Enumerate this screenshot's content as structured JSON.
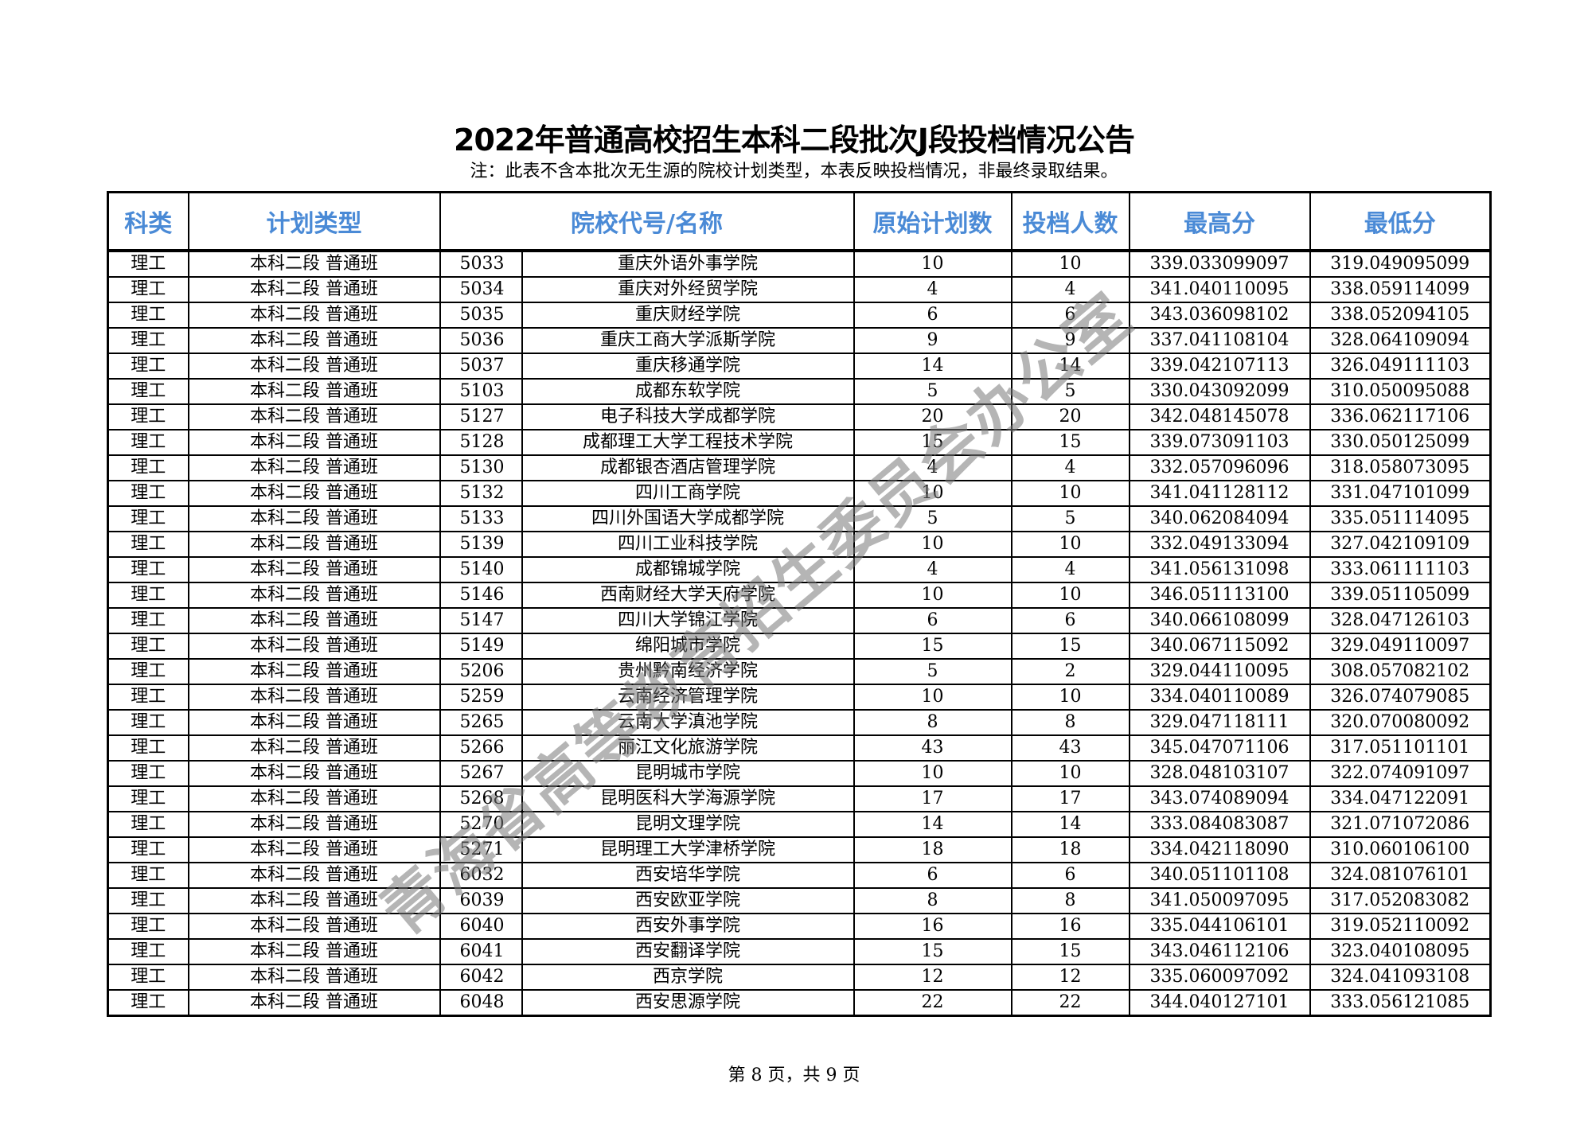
{
  "title": "2022年普通高校招生本科二段批次J段投档情况公告",
  "note": "注：此表不含本批次无生源的院校计划类型，本表反映投档情况，非最终录取结果。",
  "header_color": "#4a8ad6",
  "columns": [
    "科类",
    "计划类型",
    "院校代号/名称",
    "原始计划数",
    "投档人数",
    "最高分",
    "最低分"
  ],
  "rows": [
    [
      "理工",
      "本科二段 普通班",
      "5033",
      "重庆外语外事学院",
      "10",
      "10",
      "339.033099097",
      "319.049095099"
    ],
    [
      "理工",
      "本科二段 普通班",
      "5034",
      "重庆对外经贸学院",
      "4",
      "4",
      "341.040110095",
      "338.059114099"
    ],
    [
      "理工",
      "本科二段 普通班",
      "5035",
      "重庆财经学院",
      "6",
      "6",
      "343.036098102",
      "338.052094105"
    ],
    [
      "理工",
      "本科二段 普通班",
      "5036",
      "重庆工商大学派斯学院",
      "9",
      "9",
      "337.041108104",
      "328.064109094"
    ],
    [
      "理工",
      "本科二段 普通班",
      "5037",
      "重庆移通学院",
      "14",
      "14",
      "339.042107113",
      "326.049111103"
    ],
    [
      "理工",
      "本科二段 普通班",
      "5103",
      "成都东软学院",
      "5",
      "5",
      "330.043092099",
      "310.050095088"
    ],
    [
      "理工",
      "本科二段 普通班",
      "5127",
      "电子科技大学成都学院",
      "20",
      "20",
      "342.048145078",
      "336.062117106"
    ],
    [
      "理工",
      "本科二段 普通班",
      "5128",
      "成都理工大学工程技术学院",
      "15",
      "15",
      "339.073091103",
      "330.050125099"
    ],
    [
      "理工",
      "本科二段 普通班",
      "5130",
      "成都银杏酒店管理学院",
      "4",
      "4",
      "332.057096096",
      "318.058073095"
    ],
    [
      "理工",
      "本科二段 普通班",
      "5132",
      "四川工商学院",
      "10",
      "10",
      "341.041128112",
      "331.047101099"
    ],
    [
      "理工",
      "本科二段 普通班",
      "5133",
      "四川外国语大学成都学院",
      "5",
      "5",
      "340.062084094",
      "335.051114095"
    ],
    [
      "理工",
      "本科二段 普通班",
      "5139",
      "四川工业科技学院",
      "10",
      "10",
      "332.049133094",
      "327.042109109"
    ],
    [
      "理工",
      "本科二段 普通班",
      "5140",
      "成都锦城学院",
      "4",
      "4",
      "341.056131098",
      "333.061111103"
    ],
    [
      "理工",
      "本科二段 普通班",
      "5146",
      "西南财经大学天府学院",
      "10",
      "10",
      "346.051113100",
      "339.051105099"
    ],
    [
      "理工",
      "本科二段 普通班",
      "5147",
      "四川大学锦江学院",
      "6",
      "6",
      "340.066108099",
      "328.047126103"
    ],
    [
      "理工",
      "本科二段 普通班",
      "5149",
      "绵阳城市学院",
      "15",
      "15",
      "340.067115092",
      "329.049110097"
    ],
    [
      "理工",
      "本科二段 普通班",
      "5206",
      "贵州黔南经济学院",
      "5",
      "2",
      "329.044110095",
      "308.057082102"
    ],
    [
      "理工",
      "本科二段 普通班",
      "5259",
      "云南经济管理学院",
      "10",
      "10",
      "334.040110089",
      "326.074079085"
    ],
    [
      "理工",
      "本科二段 普通班",
      "5265",
      "云南大学滇池学院",
      "8",
      "8",
      "329.047118111",
      "320.070080092"
    ],
    [
      "理工",
      "本科二段 普通班",
      "5266",
      "丽江文化旅游学院",
      "43",
      "43",
      "345.047071106",
      "317.051101101"
    ],
    [
      "理工",
      "本科二段 普通班",
      "5267",
      "昆明城市学院",
      "10",
      "10",
      "328.048103107",
      "322.074091097"
    ],
    [
      "理工",
      "本科二段 普通班",
      "5268",
      "昆明医科大学海源学院",
      "17",
      "17",
      "343.074089094",
      "334.047122091"
    ],
    [
      "理工",
      "本科二段 普通班",
      "5270",
      "昆明文理学院",
      "14",
      "14",
      "333.084083087",
      "321.071072086"
    ],
    [
      "理工",
      "本科二段 普通班",
      "5271",
      "昆明理工大学津桥学院",
      "18",
      "18",
      "334.042118090",
      "310.060106100"
    ],
    [
      "理工",
      "本科二段 普通班",
      "6032",
      "西安培华学院",
      "6",
      "6",
      "340.051101108",
      "324.081076101"
    ],
    [
      "理工",
      "本科二段 普通班",
      "6039",
      "西安欧亚学院",
      "8",
      "8",
      "341.050097095",
      "317.052083082"
    ],
    [
      "理工",
      "本科二段 普通班",
      "6040",
      "西安外事学院",
      "16",
      "16",
      "335.044106101",
      "319.052110092"
    ],
    [
      "理工",
      "本科二段 普通班",
      "6041",
      "西安翻译学院",
      "15",
      "15",
      "343.046112106",
      "323.040108095"
    ],
    [
      "理工",
      "本科二段 普通班",
      "6042",
      "西京学院",
      "12",
      "12",
      "335.060097092",
      "324.041093108"
    ],
    [
      "理工",
      "本科二段 普通班",
      "6048",
      "西安思源学院",
      "22",
      "22",
      "344.040127101",
      "333.056121085"
    ]
  ],
  "watermark": "青海省高等教育招生委员会办公室",
  "footer": "第 8 页，共 9 页"
}
